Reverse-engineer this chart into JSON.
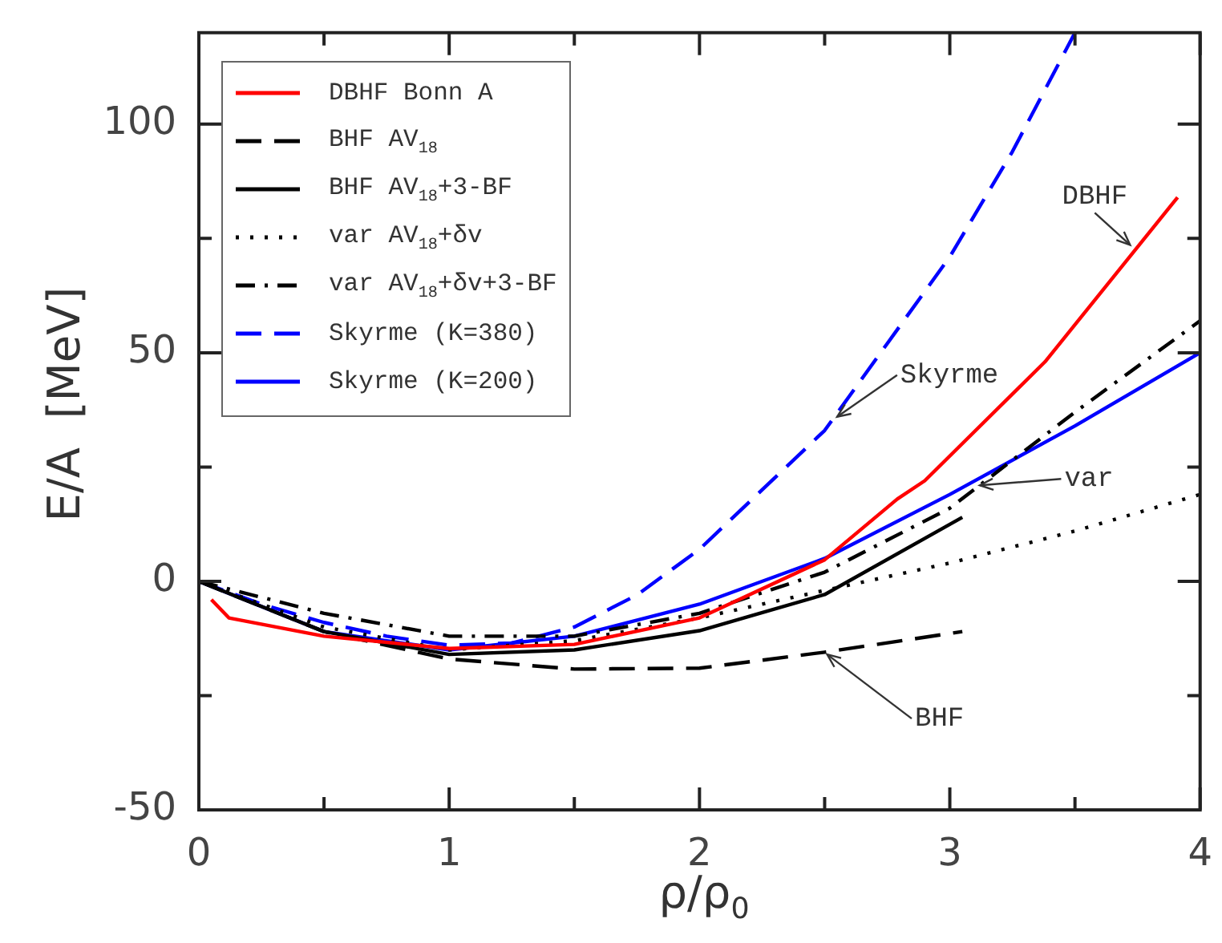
{
  "chart_data": {
    "type": "line",
    "xlabel": "ρ/ρ$_{0}$",
    "ylabel": "E/A  [MeV]",
    "xlim": [
      0,
      4
    ],
    "xticks": [
      0,
      {
        "value": 0.5,
        "label": null
      },
      1,
      {
        "value": 1.5,
        "label": null
      },
      2,
      {
        "value": 2.5,
        "label": null
      },
      3,
      {
        "value": 3.5,
        "label": null
      },
      4
    ],
    "ylim": [
      -50,
      120
    ],
    "yticks": [
      -50,
      {
        "value": -25,
        "label": null
      },
      0,
      {
        "value": 25,
        "label": null
      },
      50,
      {
        "value": 75,
        "label": null
      },
      100
    ],
    "legend": "top left",
    "marker": "none",
    "grid": false,
    "series": [
      {
        "name": "DBHF Bonn A",
        "color": "#ff0000",
        "line_style": "solid",
        "x": [
          0.05,
          0.12,
          0.5,
          1,
          1.5,
          2,
          2.5,
          2.79,
          2.9,
          3.38,
          3.91
        ],
        "values": [
          -4,
          -8,
          -12,
          -14.7,
          -13.8,
          -8,
          4.7,
          18,
          22,
          48,
          84
        ]
      },
      {
        "name": "BHF AV$_{18}$",
        "color": "#000000",
        "line_style": "dashed",
        "x": [
          0,
          0.5,
          1,
          1.5,
          2,
          2.5,
          3.05
        ],
        "values": [
          0,
          -11,
          -17,
          -19.2,
          -19,
          -15.5,
          -11
        ]
      },
      {
        "name": "BHF AV$_{18}$+3-BF",
        "color": "#000000",
        "line_style": "solid",
        "x": [
          0,
          0.5,
          1,
          1.5,
          2,
          2.5,
          3.05
        ],
        "values": [
          0,
          -11,
          -16,
          -15,
          -10.8,
          -2.9,
          14
        ]
      },
      {
        "name": "var AV$_{18}$+δv",
        "color": "#000000",
        "line_style": "dotted",
        "x": [
          0,
          0.5,
          1,
          1.5,
          2,
          2.5,
          3,
          3.5,
          4
        ],
        "values": [
          0,
          -10,
          -15,
          -13,
          -8,
          -2,
          4,
          11,
          19
        ]
      },
      {
        "name": "var AV$_{18}$+δv+3-BF",
        "color": "#000000",
        "line_style": "dashdot",
        "x": [
          0,
          0.5,
          1,
          1.5,
          2,
          2.5,
          3,
          3.5,
          4
        ],
        "values": [
          0,
          -7,
          -12,
          -12,
          -7,
          2,
          16,
          37,
          57
        ]
      },
      {
        "name": "Skyrme (K=380)",
        "color": "#0000ff",
        "line_style": "dashed",
        "x": [
          0,
          0.25,
          0.5,
          0.75,
          1,
          1.25,
          1.5,
          1.75,
          2,
          2.25,
          2.5,
          2.75,
          3,
          3.25,
          3.5
        ],
        "values": [
          0,
          -5,
          -9,
          -12,
          -14,
          -13.5,
          -10,
          -3,
          7,
          20,
          33,
          52,
          71,
          94,
          120
        ]
      },
      {
        "name": "Skyrme (K=200)",
        "color": "#0000ff",
        "line_style": "solid",
        "x": [
          0,
          0.5,
          1,
          1.5,
          2,
          2.5,
          3,
          3.5,
          4
        ],
        "values": [
          0,
          -11,
          -15,
          -12,
          -5,
          5,
          19,
          34,
          50
        ]
      }
    ],
    "annotations": [
      {
        "text": "DBHF",
        "x": 3.72,
        "y": 73.6
      },
      {
        "text": "Skyrme",
        "x": 2.55,
        "y": 36
      },
      {
        "text": "var",
        "x": 3.12,
        "y": 21
      },
      {
        "text": "BHF",
        "x": 2.51,
        "y": -16
      }
    ]
  }
}
